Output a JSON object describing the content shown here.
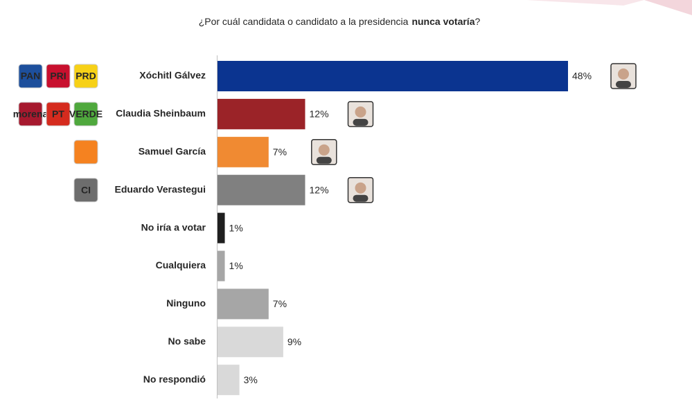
{
  "chart_data": {
    "type": "bar",
    "orientation": "horizontal",
    "title": [
      "¿Por cuál candidata o candidato a la presidencia",
      "nunca votaría",
      "?"
    ],
    "categories": [
      "Xóchitl Gálvez",
      "Claudia Sheinbaum",
      "Samuel García",
      "Eduardo Verastegui",
      "No iría a votar",
      "Cualquiera",
      "Ninguno",
      "No sabe",
      "No respondió"
    ],
    "values": [
      48,
      12,
      7,
      12,
      1,
      1,
      7,
      9,
      3
    ],
    "value_labels": [
      "48%",
      "12%",
      "7%",
      "12%",
      "1%",
      "1%",
      "7%",
      "9%",
      "3%"
    ],
    "colors": [
      "#0b3490",
      "#9b2328",
      "#f08a32",
      "#808080",
      "#1f1f1f",
      "#a6a6a6",
      "#a6a6a6",
      "#d9d9d9",
      "#d9d9d9"
    ],
    "party_logos": [
      [
        {
          "label": "PAN",
          "color": "#1d4f9c"
        },
        {
          "label": "PRI",
          "color": "#c8102e"
        },
        {
          "label": "PRD",
          "color": "#f7d117"
        }
      ],
      [
        {
          "label": "morena",
          "color": "#a6192e"
        },
        {
          "label": "PT",
          "color": "#d52b1e"
        },
        {
          "label": "VERDE",
          "color": "#4fa83d"
        }
      ],
      [
        {
          "color": "#f58220"
        }
      ],
      [
        {
          "label": "CI",
          "color": "#6d6d6d"
        }
      ],
      null,
      null,
      null,
      null,
      null
    ]
  }
}
